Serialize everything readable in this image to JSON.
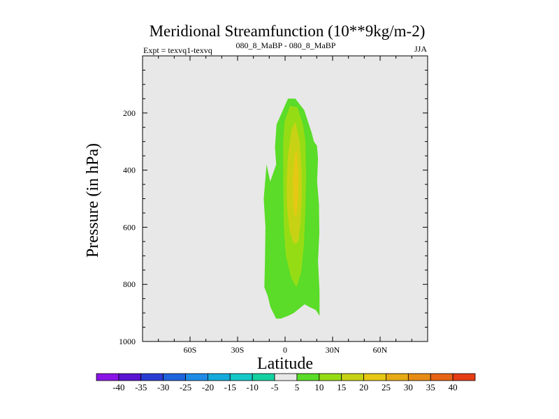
{
  "chart_data": {
    "type": "contour",
    "title": "Meridional Streamfunction (10**9kg/m-2)",
    "subtitle_left_prefix": "Expt = texvq1-texvq",
    "subtitle_center": "080_8_MaBP - 080_8_MaBP",
    "subtitle_right": "JJA",
    "xlabel": "Latitude",
    "ylabel": "Pressure (in hPa)",
    "xlim": [
      -90,
      90
    ],
    "ylim": [
      1000,
      0
    ],
    "xticks": [
      {
        "value": -60,
        "label": "60S"
      },
      {
        "value": -30,
        "label": "30S"
      },
      {
        "value": 0,
        "label": "0"
      },
      {
        "value": 30,
        "label": "30N"
      },
      {
        "value": 60,
        "label": "60N"
      }
    ],
    "yticks": [
      {
        "value": 200,
        "label": "200"
      },
      {
        "value": 400,
        "label": "400"
      },
      {
        "value": 600,
        "label": "600"
      },
      {
        "value": 800,
        "label": "800"
      },
      {
        "value": 1000,
        "label": "1000"
      }
    ],
    "background_color": "#e8e8e8",
    "contour_levels": [
      -40,
      -35,
      -30,
      -25,
      -20,
      -15,
      -10,
      -5,
      5,
      10,
      15,
      20,
      25,
      30,
      35,
      40
    ],
    "colorbar_labels": [
      "-40",
      "-35",
      "-30",
      "-25",
      "-20",
      "-15",
      "-10",
      "-5",
      "5",
      "10",
      "15",
      "20",
      "25",
      "30",
      "35",
      "40"
    ],
    "colorbar_colors": [
      "#8a14e6",
      "#5a14d2",
      "#2a3cd2",
      "#1e64dc",
      "#1e8ce6",
      "#14aadc",
      "#14c8c8",
      "#14d2a0",
      "#e8e8e8",
      "#5adc28",
      "#96dc14",
      "#c8d214",
      "#e6c814",
      "#e6aa14",
      "#e68c14",
      "#e66414",
      "#e63c14"
    ],
    "filled_regions": [
      {
        "level_range": [
          5,
          10
        ],
        "color": "#5adc28",
        "outline": [
          [
            -5.7,
            920
          ],
          [
            -9.2,
            880
          ],
          [
            -11,
            840
          ],
          [
            -13.1,
            810
          ],
          [
            -12.7,
            720
          ],
          [
            -12.4,
            600
          ],
          [
            -13.5,
            500
          ],
          [
            -11.7,
            380
          ],
          [
            -9.4,
            440
          ],
          [
            -5.6,
            380
          ],
          [
            -6.4,
            320
          ],
          [
            -5.4,
            240
          ],
          [
            1.8,
            150
          ],
          [
            6.5,
            150
          ],
          [
            12.1,
            190
          ],
          [
            16.8,
            270
          ],
          [
            18.2,
            300
          ],
          [
            20.1,
            315
          ],
          [
            20.8,
            360
          ],
          [
            20.2,
            440
          ],
          [
            21.4,
            520
          ],
          [
            21.6,
            620
          ],
          [
            20.8,
            720
          ],
          [
            21.7,
            820
          ],
          [
            21.8,
            910
          ],
          [
            19.4,
            890
          ],
          [
            15.6,
            880
          ],
          [
            12.3,
            870
          ],
          [
            5.5,
            900
          ],
          [
            2,
            910
          ],
          [
            -2.8,
            920
          ]
        ]
      },
      {
        "level_range": [
          10,
          15
        ],
        "color": "#96dc14",
        "outline": [
          [
            -0.3,
            230
          ],
          [
            3.1,
            175
          ],
          [
            7.8,
            180
          ],
          [
            11.3,
            240
          ],
          [
            12.9,
            300
          ],
          [
            13.3,
            420
          ],
          [
            12.8,
            540
          ],
          [
            11.9,
            660
          ],
          [
            10.1,
            760
          ],
          [
            7.2,
            810
          ],
          [
            4,
            780
          ],
          [
            0.5,
            700
          ],
          [
            -0.8,
            600
          ],
          [
            -1.1,
            500
          ],
          [
            -1.2,
            400
          ],
          [
            -1.2,
            300
          ]
        ]
      },
      {
        "level_range": [
          15,
          20
        ],
        "color": "#c8d214",
        "outline": [
          [
            1.8,
            350
          ],
          [
            4,
            260
          ],
          [
            6.5,
            230
          ],
          [
            9.2,
            300
          ],
          [
            10.4,
            400
          ],
          [
            10.6,
            500
          ],
          [
            9.6,
            590
          ],
          [
            8.3,
            650
          ],
          [
            5.5,
            660
          ],
          [
            2.8,
            610
          ],
          [
            1.1,
            520
          ],
          [
            1,
            440
          ]
        ]
      },
      {
        "level_range": [
          20,
          25
        ],
        "color": "#e6c814",
        "outline": [
          [
            4.9,
            430
          ],
          [
            6.3,
            340
          ],
          [
            7.5,
            330
          ],
          [
            8.3,
            410
          ],
          [
            8.2,
            500
          ],
          [
            7.3,
            560
          ],
          [
            6,
            560
          ],
          [
            5.2,
            520
          ]
        ]
      }
    ]
  }
}
